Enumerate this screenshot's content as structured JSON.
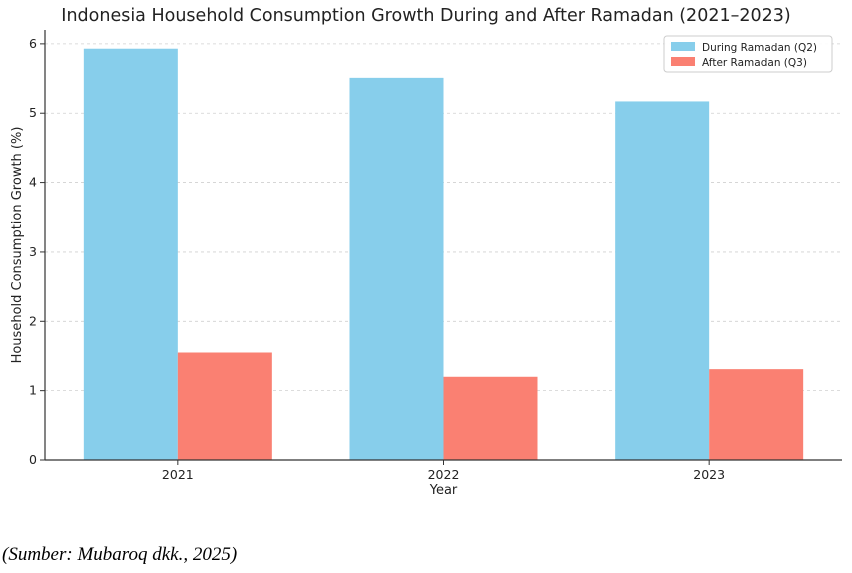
{
  "chart_data": {
    "type": "bar",
    "title": "Indonesia Household Consumption Growth During and After Ramadan (2021–2023)",
    "xlabel": "Year",
    "ylabel": "Household Consumption Growth (%)",
    "categories": [
      "2021",
      "2022",
      "2023"
    ],
    "series": [
      {
        "name": "During Ramadan (Q2)",
        "color": "#87CEEB",
        "values": [
          5.93,
          5.51,
          5.17
        ]
      },
      {
        "name": "After Ramadan (Q3)",
        "color": "#FA8072",
        "values": [
          1.55,
          1.2,
          1.31
        ]
      }
    ],
    "ylim": [
      0,
      6.2
    ],
    "yticks": [
      "0",
      "1",
      "2",
      "3",
      "4",
      "5",
      "6"
    ],
    "grid": "horizontal dashed",
    "legend_position": "top-right"
  },
  "caption": "(Sumber: Mubaroq dkk., 2025)"
}
